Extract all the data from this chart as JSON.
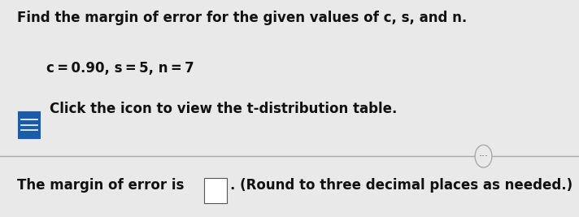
{
  "line1": "Find the margin of error for the given values of c, s, and n.",
  "line2": "c = 0.90, s = 5, n = 7",
  "line3": "Click the icon to view the t-distribution table.",
  "line4_prefix": "The margin of error is",
  "line4_suffix": ". (Round to three decimal places as needed.)",
  "background_color": "#e9e9e9",
  "text_color": "#111111",
  "icon_blue": "#1a5caa",
  "separator_color": "#aaaaaa",
  "dots_color": "#555555",
  "box_color": "white",
  "box_edge_color": "#555555"
}
